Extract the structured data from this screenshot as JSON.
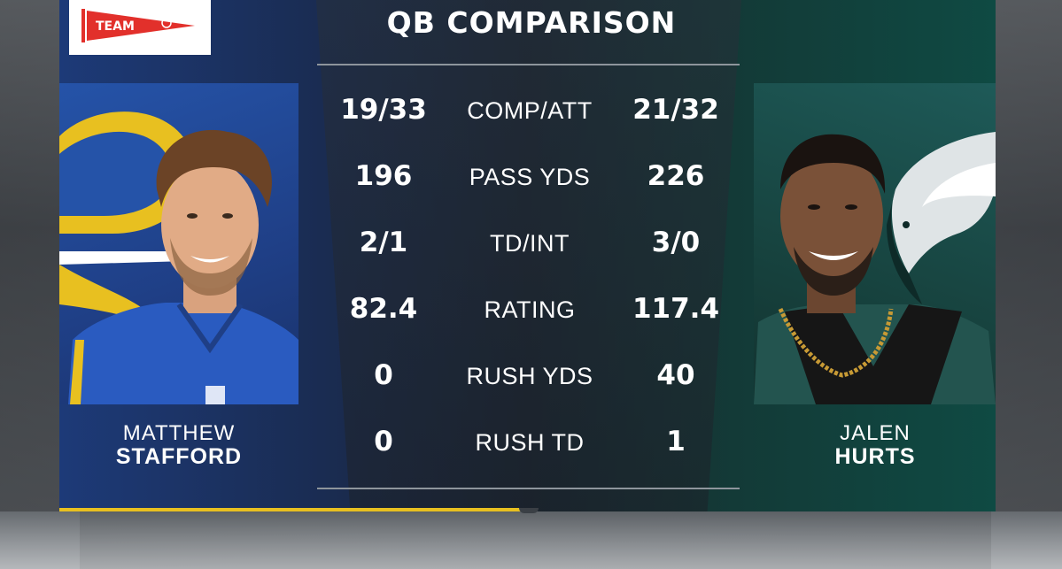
{
  "brand": {
    "logo_text": "TEAM"
  },
  "title": "QB COMPARISON",
  "players": {
    "left": {
      "first": "MATTHEW",
      "last": "STAFFORD"
    },
    "right": {
      "first": "JALEN",
      "last": "HURTS"
    }
  },
  "stats": [
    {
      "label": "COMP/ATT",
      "left": "19/33",
      "right": "21/32"
    },
    {
      "label": "PASS YDS",
      "left": "196",
      "right": "226"
    },
    {
      "label": "TD/INT",
      "left": "2/1",
      "right": "3/0"
    },
    {
      "label": "RATING",
      "left": "82.4",
      "right": "117.4"
    },
    {
      "label": "RUSH YDS",
      "left": "0",
      "right": "40"
    },
    {
      "label": "RUSH TD",
      "left": "0",
      "right": "1"
    }
  ],
  "colors": {
    "rams_blue": "#2553a8",
    "rams_gold": "#e8c020",
    "eagles_green": "#17433f",
    "pennant_red": "#e2302b"
  }
}
